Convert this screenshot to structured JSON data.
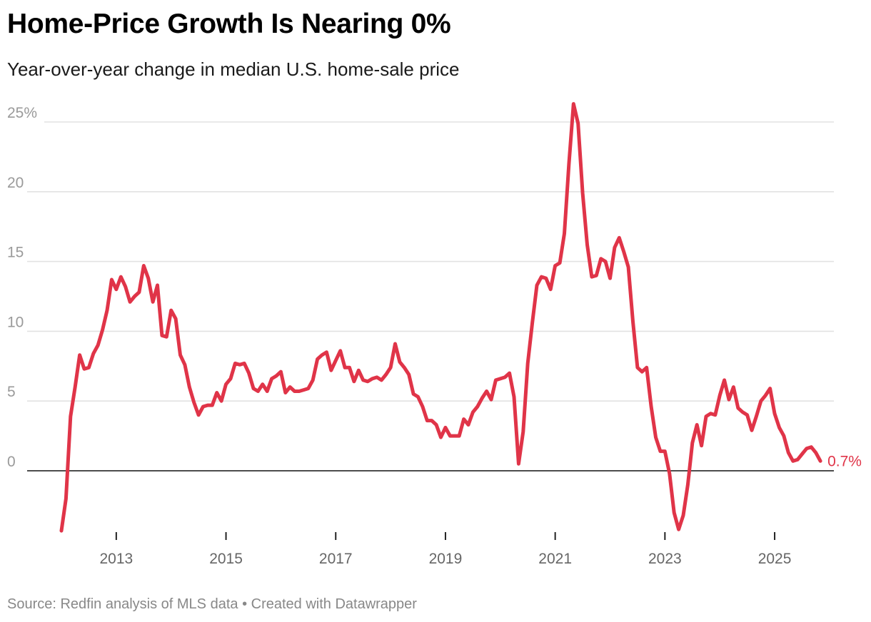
{
  "chart_data": {
    "type": "line",
    "title": "Home-Price Growth Is Nearing 0%",
    "subtitle": "Year-over-year change in median U.S. home-sale price",
    "source": "Source: Redfin analysis of MLS data • Created with Datawrapper",
    "x_start": "2012-01",
    "x_frequency": "monthly",
    "x_end": "2025-11",
    "x_ticks": [
      "2013",
      "2015",
      "2017",
      "2019",
      "2021",
      "2023",
      "2025"
    ],
    "y_ticks": [
      {
        "value": 25,
        "label": "25%"
      },
      {
        "value": 20,
        "label": "20"
      },
      {
        "value": 15,
        "label": "15"
      },
      {
        "value": 10,
        "label": "10"
      },
      {
        "value": 5,
        "label": "5"
      },
      {
        "value": 0,
        "label": "0"
      }
    ],
    "ylim": [
      -4.5,
      26.5
    ],
    "grid": true,
    "line_color": "#e03448",
    "end_label": "0.7%",
    "values": [
      -4.3,
      -2.0,
      3.9,
      6.0,
      8.3,
      7.3,
      7.4,
      8.4,
      9.0,
      10.1,
      11.5,
      13.7,
      13.0,
      13.9,
      13.2,
      12.1,
      12.5,
      12.8,
      14.7,
      13.8,
      12.1,
      13.3,
      9.7,
      9.6,
      11.5,
      10.9,
      8.3,
      7.6,
      6.0,
      4.9,
      4.0,
      4.6,
      4.7,
      4.7,
      5.6,
      5.0,
      6.2,
      6.6,
      7.7,
      7.6,
      7.7,
      7.0,
      5.9,
      5.7,
      6.2,
      5.7,
      6.6,
      6.8,
      7.1,
      5.6,
      6.0,
      5.7,
      5.7,
      5.8,
      5.9,
      6.5,
      8.0,
      8.3,
      8.5,
      7.2,
      7.9,
      8.6,
      7.4,
      7.4,
      6.4,
      7.2,
      6.5,
      6.4,
      6.6,
      6.7,
      6.5,
      6.9,
      7.4,
      9.1,
      7.8,
      7.4,
      6.9,
      5.5,
      5.3,
      4.6,
      3.6,
      3.6,
      3.3,
      2.4,
      3.1,
      2.5,
      2.5,
      2.5,
      3.7,
      3.3,
      4.2,
      4.6,
      5.2,
      5.7,
      5.1,
      6.5,
      6.6,
      6.7,
      7.0,
      5.3,
      0.5,
      2.8,
      7.7,
      10.6,
      13.3,
      13.9,
      13.8,
      13.0,
      14.7,
      14.9,
      17.0,
      22.0,
      26.3,
      24.9,
      19.9,
      16.2,
      13.9,
      14.0,
      15.2,
      15.0,
      13.8,
      16.0,
      16.7,
      15.7,
      14.6,
      10.7,
      7.4,
      7.1,
      7.4,
      4.6,
      2.4,
      1.4,
      1.4,
      -0.2,
      -3.0,
      -4.2,
      -3.2,
      -1.0,
      2.0,
      3.3,
      1.8,
      3.9,
      4.1,
      4.0,
      5.4,
      6.5,
      5.1,
      6.0,
      4.5,
      4.2,
      4.0,
      2.9,
      3.9,
      5.0,
      5.4,
      5.9,
      4.1,
      3.1,
      2.5,
      1.3,
      0.7,
      0.8,
      1.2,
      1.6,
      1.7,
      1.3,
      0.7
    ]
  }
}
